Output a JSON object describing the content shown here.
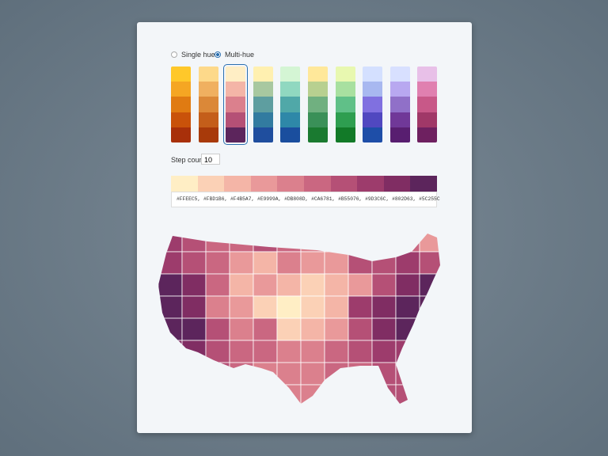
{
  "controls": {
    "options": [
      {
        "label": "Single hue",
        "selected": false
      },
      {
        "label": "Multi-hue",
        "selected": true
      }
    ],
    "step_label": "Step count",
    "step_count": 10,
    "accent": "#2a6fb0"
  },
  "palettes": [
    [
      "#FFC82A",
      "#F5A623",
      "#E07B12",
      "#C9520A",
      "#A8300A"
    ],
    [
      "#FDD98A",
      "#F0B060",
      "#DB8838",
      "#C45E1A",
      "#A83A0A"
    ],
    [
      "#FFEEC5",
      "#F4B5A7",
      "#DB808D",
      "#B55076",
      "#5C255C"
    ],
    [
      "#FFF0B0",
      "#A8C8A0",
      "#5E9EA0",
      "#327BA0",
      "#1F4E9E"
    ],
    [
      "#D4F5D4",
      "#90D8C0",
      "#50A8A8",
      "#2E88A8",
      "#1A4E9E"
    ],
    [
      "#FFE89A",
      "#B8D090",
      "#70B080",
      "#3A9058",
      "#1A7A30"
    ],
    [
      "#E8F8B0",
      "#A8E0A0",
      "#60C088",
      "#2E9E50",
      "#127A28"
    ],
    [
      "#D4E0FF",
      "#A8B8F0",
      "#8070E0",
      "#5048C0",
      "#1E4EA8"
    ],
    [
      "#D8E0FF",
      "#B8A8F0",
      "#9070C8",
      "#703898",
      "#581E70"
    ],
    [
      "#E8C0E8",
      "#E080B0",
      "#C85888",
      "#A03868",
      "#6E2060"
    ]
  ],
  "selected_palette": 2,
  "scale": {
    "colors": [
      "#FFEEC5",
      "#FBD1B6",
      "#F4B5A7",
      "#E9999A",
      "#DB808D",
      "#CA6781",
      "#B55076",
      "#9D3C6C",
      "#802D63",
      "#5C255C"
    ]
  }
}
